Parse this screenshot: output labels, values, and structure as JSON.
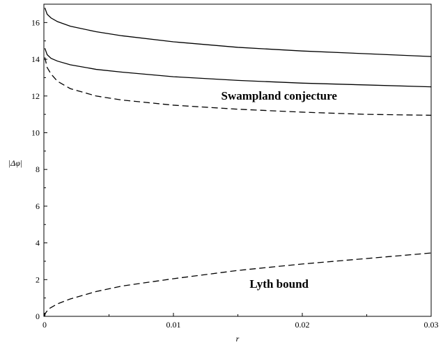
{
  "chart_data": {
    "type": "line",
    "xlabel": "r",
    "ylabel": "|Δφ|",
    "xlim": [
      0,
      0.03
    ],
    "ylim": [
      0,
      17
    ],
    "grid": false,
    "x_ticks": [
      {
        "value": 0,
        "label": "0"
      },
      {
        "value": 0.01,
        "label": "0.01"
      },
      {
        "value": 0.02,
        "label": "0.02"
      },
      {
        "value": 0.03,
        "label": "0.03"
      }
    ],
    "y_ticks": [
      {
        "value": 0,
        "label": "0"
      },
      {
        "value": 2,
        "label": "2"
      },
      {
        "value": 4,
        "label": "4"
      },
      {
        "value": 6,
        "label": "6"
      },
      {
        "value": 8,
        "label": "8"
      },
      {
        "value": 10,
        "label": "10"
      },
      {
        "value": 12,
        "label": "12"
      },
      {
        "value": 14,
        "label": "14"
      },
      {
        "value": 16,
        "label": "16"
      }
    ],
    "annotations": [
      {
        "text": "Swampland conjecture",
        "x": 0.0182,
        "y": 11.8
      },
      {
        "text": "Lyth bound",
        "x": 0.0182,
        "y": 1.55
      }
    ],
    "series": [
      {
        "style": "solid",
        "x": [
          2e-05,
          0.0002,
          0.0005,
          0.001,
          0.002,
          0.004,
          0.006,
          0.01,
          0.015,
          0.02,
          0.025,
          0.03
        ],
        "y": [
          16.8,
          16.45,
          16.25,
          16.05,
          15.8,
          15.5,
          15.28,
          14.95,
          14.65,
          14.45,
          14.3,
          14.15
        ]
      },
      {
        "style": "solid",
        "x": [
          2e-05,
          0.0002,
          0.0005,
          0.001,
          0.002,
          0.004,
          0.006,
          0.01,
          0.015,
          0.02,
          0.025,
          0.03
        ],
        "y": [
          14.6,
          14.25,
          14.05,
          13.9,
          13.7,
          13.45,
          13.3,
          13.05,
          12.85,
          12.7,
          12.6,
          12.5
        ]
      },
      {
        "style": "dashed",
        "x": [
          2e-05,
          0.0002,
          0.0005,
          0.001,
          0.002,
          0.004,
          0.006,
          0.01,
          0.015,
          0.02,
          0.025,
          0.03
        ],
        "y": [
          14.1,
          13.55,
          13.2,
          12.8,
          12.4,
          12.0,
          11.78,
          11.5,
          11.28,
          11.12,
          11.0,
          10.95
        ]
      },
      {
        "style": "dashed",
        "x": [
          0,
          5e-05,
          0.0003,
          0.001,
          0.002,
          0.004,
          0.006,
          0.01,
          0.015,
          0.02,
          0.025,
          0.03
        ],
        "y": [
          0,
          0.15,
          0.4,
          0.68,
          0.95,
          1.35,
          1.65,
          2.05,
          2.5,
          2.85,
          3.15,
          3.45
        ]
      }
    ]
  }
}
